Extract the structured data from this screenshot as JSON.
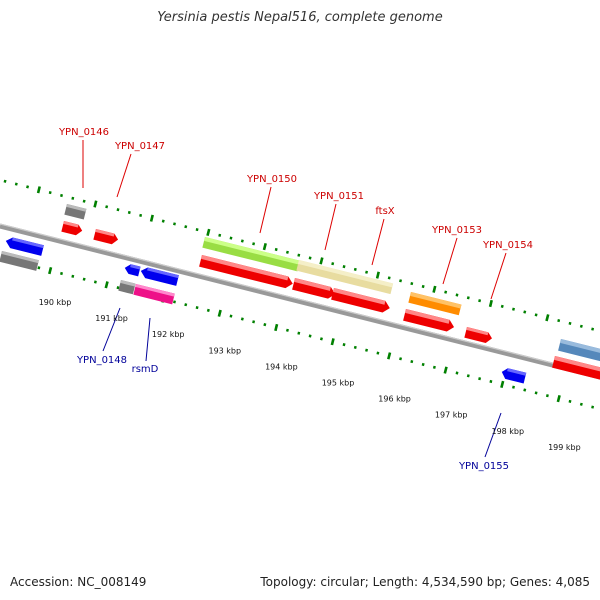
{
  "title": "Yersinia pestis Nepal516, complete genome",
  "footer": {
    "accession": "Accession: NC_008149",
    "topology": "Topology: circular; Length: 4,534,590 bp; Genes: 4,085"
  },
  "colors": {
    "forward": "#ff0000",
    "reverse": "#0000ff",
    "pseudo": "#808080",
    "backbone": "#808080",
    "ticks": "#008000",
    "label_forward": "#cc0000",
    "label_reverse": "#000099"
  },
  "ticks": [
    "190 kbp",
    "191 kbp",
    "192 kbp",
    "193 kbp",
    "194 kbp",
    "195 kbp",
    "196 kbp",
    "197 kbp",
    "198 kbp",
    "199 kbp"
  ],
  "forward_labels": [
    "YPN_0146",
    "YPN_0147",
    "YPN_0150",
    "YPN_0151",
    "ftsX",
    "YPN_0153",
    "YPN_0154"
  ],
  "reverse_labels": [
    "YPN_0148",
    "rsmD",
    "YPN_0155"
  ]
}
